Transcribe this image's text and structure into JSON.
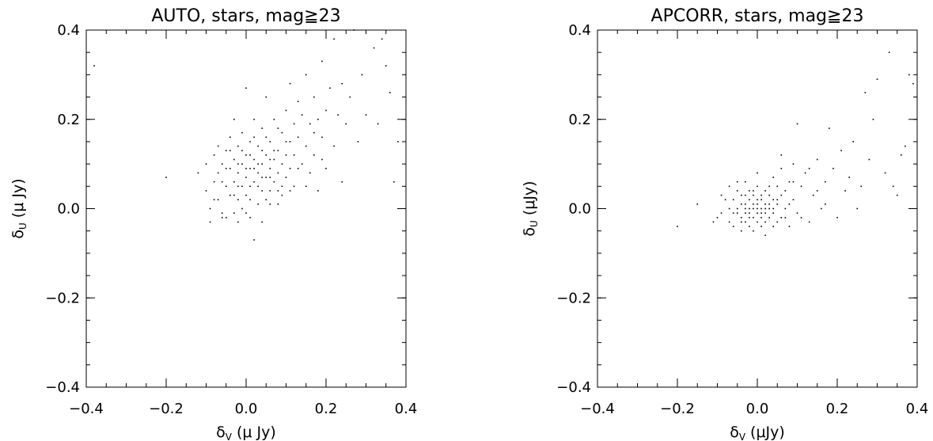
{
  "chart_data": [
    {
      "type": "scatter",
      "title": "AUTO, stars, mag≧23",
      "xlabel_symbol": "δ",
      "xlabel_sub": "V",
      "xlabel_unit": "(μ Jy)",
      "ylabel_symbol": "δ",
      "ylabel_sub": "U",
      "ylabel_unit": "(μ Jy)",
      "xlim": [
        -0.4,
        0.4
      ],
      "ylim": [
        -0.4,
        0.4
      ],
      "xticks": [
        -0.4,
        -0.2,
        0.0,
        0.2,
        0.4
      ],
      "yticks": [
        -0.4,
        -0.2,
        0.0,
        0.2,
        0.4
      ],
      "xtick_labels": [
        "−0.4",
        "−0.2",
        "0.0",
        "0.2",
        "0.4"
      ],
      "ytick_labels": [
        "−0.4",
        "−0.2",
        "0.0",
        "0.2",
        "0.4"
      ],
      "grid": false,
      "marker_color": "#000000",
      "points": [
        [
          -0.38,
          0.32
        ],
        [
          -0.2,
          0.07
        ],
        [
          -0.12,
          0.08
        ],
        [
          -0.1,
          0.1
        ],
        [
          -0.1,
          0.04
        ],
        [
          -0.09,
          0.0
        ],
        [
          -0.09,
          -0.03
        ],
        [
          -0.08,
          0.06
        ],
        [
          -0.08,
          0.12
        ],
        [
          -0.07,
          0.08
        ],
        [
          -0.07,
          0.02
        ],
        [
          -0.06,
          0.1
        ],
        [
          -0.06,
          -0.01
        ],
        [
          -0.05,
          0.05
        ],
        [
          -0.05,
          0.13
        ],
        [
          -0.05,
          -0.02
        ],
        [
          -0.04,
          0.09
        ],
        [
          -0.04,
          0.03
        ],
        [
          -0.04,
          0.16
        ],
        [
          -0.03,
          0.06
        ],
        [
          -0.03,
          0.11
        ],
        [
          -0.03,
          -0.01
        ],
        [
          -0.03,
          0.2
        ],
        [
          -0.02,
          0.08
        ],
        [
          -0.02,
          0.02
        ],
        [
          -0.02,
          0.14
        ],
        [
          -0.02,
          -0.03
        ],
        [
          -0.01,
          0.1
        ],
        [
          -0.01,
          0.05
        ],
        [
          -0.01,
          0.17
        ],
        [
          -0.01,
          0.0
        ],
        [
          0.0,
          0.07
        ],
        [
          0.0,
          0.12
        ],
        [
          0.0,
          0.03
        ],
        [
          0.0,
          0.27
        ],
        [
          0.01,
          0.09
        ],
        [
          0.01,
          -0.02
        ],
        [
          0.01,
          0.15
        ],
        [
          0.01,
          0.05
        ],
        [
          0.02,
          0.11
        ],
        [
          0.02,
          -0.07
        ],
        [
          0.02,
          0.06
        ],
        [
          0.02,
          0.2
        ],
        [
          0.03,
          0.08
        ],
        [
          0.03,
          0.01
        ],
        [
          0.03,
          0.14
        ],
        [
          0.04,
          0.1
        ],
        [
          0.04,
          0.04
        ],
        [
          0.04,
          0.18
        ],
        [
          0.04,
          -0.03
        ],
        [
          0.05,
          0.07
        ],
        [
          0.05,
          0.12
        ],
        [
          0.05,
          0.02
        ],
        [
          0.05,
          0.25
        ],
        [
          0.06,
          0.09
        ],
        [
          0.06,
          0.15
        ],
        [
          0.06,
          0.04
        ],
        [
          0.07,
          0.11
        ],
        [
          0.07,
          0.06
        ],
        [
          0.07,
          0.2
        ],
        [
          0.08,
          0.08
        ],
        [
          0.08,
          0.13
        ],
        [
          0.08,
          0.01
        ],
        [
          0.09,
          0.1
        ],
        [
          0.09,
          0.17
        ],
        [
          0.09,
          0.05
        ],
        [
          0.1,
          0.12
        ],
        [
          0.1,
          0.22
        ],
        [
          0.1,
          0.07
        ],
        [
          0.11,
          0.15
        ],
        [
          0.11,
          0.28
        ],
        [
          0.11,
          0.09
        ],
        [
          0.12,
          0.19
        ],
        [
          0.12,
          0.12
        ],
        [
          0.12,
          0.05
        ],
        [
          0.13,
          0.24
        ],
        [
          0.13,
          0.16
        ],
        [
          0.14,
          0.1
        ],
        [
          0.14,
          0.21
        ],
        [
          0.15,
          0.3
        ],
        [
          0.15,
          0.14
        ],
        [
          0.16,
          0.19
        ],
        [
          0.16,
          0.08
        ],
        [
          0.17,
          0.25
        ],
        [
          0.17,
          0.12
        ],
        [
          0.18,
          0.2
        ],
        [
          0.18,
          0.04
        ],
        [
          0.19,
          0.16
        ],
        [
          0.19,
          0.33
        ],
        [
          0.2,
          0.22
        ],
        [
          0.2,
          0.09
        ],
        [
          0.21,
          0.27
        ],
        [
          0.22,
          0.14
        ],
        [
          0.22,
          0.38
        ],
        [
          0.23,
          0.21
        ],
        [
          0.24,
          0.28
        ],
        [
          0.24,
          0.06
        ],
        [
          0.25,
          0.19
        ],
        [
          0.26,
          0.25
        ],
        [
          0.27,
          0.4
        ],
        [
          0.28,
          0.15
        ],
        [
          0.29,
          0.3
        ],
        [
          0.3,
          0.21
        ],
        [
          0.32,
          0.36
        ],
        [
          0.33,
          0.19
        ],
        [
          0.34,
          0.38
        ],
        [
          0.35,
          0.32
        ],
        [
          0.36,
          0.26
        ],
        [
          0.37,
          0.06
        ],
        [
          0.38,
          0.15
        ],
        [
          -0.06,
          0.06
        ],
        [
          -0.05,
          0.09
        ],
        [
          -0.04,
          0.13
        ],
        [
          -0.02,
          0.05
        ],
        [
          -0.01,
          0.13
        ],
        [
          0.0,
          0.09
        ],
        [
          0.01,
          0.02
        ],
        [
          0.02,
          0.16
        ],
        [
          0.03,
          0.1
        ],
        [
          0.03,
          0.05
        ],
        [
          0.05,
          0.16
        ],
        [
          0.06,
          0.01
        ],
        [
          0.07,
          0.13
        ],
        [
          0.08,
          0.18
        ],
        [
          0.09,
          0.03
        ],
        [
          0.1,
          0.15
        ],
        [
          -0.08,
          0.02
        ],
        [
          -0.07,
          0.14
        ],
        [
          -0.06,
          -0.02
        ],
        [
          0.04,
          0.13
        ],
        [
          0.06,
          0.11
        ],
        [
          0.11,
          0.04
        ],
        [
          0.13,
          0.09
        ],
        [
          0.15,
          0.05
        ],
        [
          0.17,
          0.17
        ],
        [
          0.19,
          0.11
        ],
        [
          -0.03,
          0.03
        ],
        [
          0.0,
          -0.01
        ],
        [
          0.02,
          0.09
        ],
        [
          0.04,
          0.07
        ],
        [
          0.01,
          0.12
        ],
        [
          -0.02,
          0.1
        ],
        [
          0.06,
          0.07
        ],
        [
          0.08,
          0.04
        ]
      ]
    },
    {
      "type": "scatter",
      "title": "APCORR, stars, mag≧23",
      "xlabel_symbol": "δ",
      "xlabel_sub": "V",
      "xlabel_unit": "(μJy)",
      "ylabel_symbol": "δ",
      "ylabel_sub": "U",
      "ylabel_unit": "(μJy)",
      "xlim": [
        -0.4,
        0.4
      ],
      "ylim": [
        -0.4,
        0.4
      ],
      "xticks": [
        -0.4,
        -0.2,
        0.0,
        0.2,
        0.4
      ],
      "yticks": [
        -0.4,
        -0.2,
        0.0,
        0.2,
        0.4
      ],
      "xtick_labels": [
        "−0.4",
        "−0.2",
        "0.0",
        "0.2",
        "0.4"
      ],
      "ytick_labels": [
        "−0.4",
        "−0.2",
        "0.0",
        "0.2",
        "0.4"
      ],
      "grid": false,
      "marker_color": "#000000",
      "points": [
        [
          -0.2,
          -0.04
        ],
        [
          -0.15,
          0.01
        ],
        [
          -0.11,
          -0.03
        ],
        [
          -0.09,
          -0.01
        ],
        [
          -0.07,
          0.0
        ],
        [
          -0.06,
          -0.04
        ],
        [
          -0.06,
          0.02
        ],
        [
          -0.05,
          -0.01
        ],
        [
          -0.05,
          0.04
        ],
        [
          -0.04,
          -0.02
        ],
        [
          -0.04,
          0.01
        ],
        [
          -0.04,
          -0.05
        ],
        [
          -0.03,
          0.0
        ],
        [
          -0.03,
          0.03
        ],
        [
          -0.03,
          -0.03
        ],
        [
          -0.03,
          0.06
        ],
        [
          -0.02,
          -0.01
        ],
        [
          -0.02,
          0.02
        ],
        [
          -0.02,
          -0.04
        ],
        [
          -0.02,
          0.04
        ],
        [
          -0.01,
          0.0
        ],
        [
          -0.01,
          -0.02
        ],
        [
          -0.01,
          0.03
        ],
        [
          -0.01,
          -0.05
        ],
        [
          0.0,
          -0.01
        ],
        [
          0.0,
          0.01
        ],
        [
          0.0,
          -0.03
        ],
        [
          0.0,
          0.05
        ],
        [
          0.0,
          0.08
        ],
        [
          0.01,
          0.0
        ],
        [
          0.01,
          -0.02
        ],
        [
          0.01,
          0.02
        ],
        [
          0.01,
          -0.04
        ],
        [
          0.02,
          -0.01
        ],
        [
          0.02,
          0.01
        ],
        [
          0.02,
          0.04
        ],
        [
          0.02,
          -0.06
        ],
        [
          0.03,
          0.0
        ],
        [
          0.03,
          -0.02
        ],
        [
          0.03,
          0.03
        ],
        [
          0.04,
          -0.01
        ],
        [
          0.04,
          0.02
        ],
        [
          0.04,
          0.07
        ],
        [
          0.05,
          -0.03
        ],
        [
          0.05,
          0.01
        ],
        [
          0.05,
          0.05
        ],
        [
          0.06,
          -0.02
        ],
        [
          0.06,
          0.09
        ],
        [
          0.07,
          0.0
        ],
        [
          0.07,
          0.04
        ],
        [
          0.08,
          -0.04
        ],
        [
          0.08,
          0.06
        ],
        [
          0.09,
          0.02
        ],
        [
          0.09,
          0.1
        ],
        [
          0.1,
          -0.01
        ],
        [
          0.1,
          0.19
        ],
        [
          0.11,
          0.05
        ],
        [
          0.12,
          0.08
        ],
        [
          0.13,
          -0.03
        ],
        [
          0.14,
          0.03
        ],
        [
          0.15,
          0.11
        ],
        [
          0.16,
          0.0
        ],
        [
          0.17,
          0.06
        ],
        [
          0.18,
          0.18
        ],
        [
          0.19,
          0.09
        ],
        [
          0.2,
          -0.02
        ],
        [
          0.21,
          0.13
        ],
        [
          0.22,
          0.04
        ],
        [
          0.23,
          0.07
        ],
        [
          0.24,
          0.15
        ],
        [
          0.25,
          0.0
        ],
        [
          0.26,
          0.05
        ],
        [
          0.27,
          0.26
        ],
        [
          0.28,
          0.11
        ],
        [
          0.29,
          0.2
        ],
        [
          0.3,
          0.29
        ],
        [
          0.32,
          0.08
        ],
        [
          0.33,
          0.35
        ],
        [
          0.34,
          0.05
        ],
        [
          0.35,
          0.03
        ],
        [
          0.36,
          0.12
        ],
        [
          0.37,
          0.14
        ],
        [
          0.38,
          0.3
        ],
        [
          0.39,
          0.28
        ],
        [
          -0.08,
          0.02
        ],
        [
          -0.07,
          -0.03
        ],
        [
          -0.05,
          0.06
        ],
        [
          -0.04,
          0.03
        ],
        [
          -0.03,
          -0.01
        ],
        [
          -0.02,
          0.0
        ],
        [
          -0.01,
          0.01
        ],
        [
          0.0,
          0.02
        ],
        [
          0.01,
          -0.01
        ],
        [
          0.02,
          0.0
        ],
        [
          0.03,
          0.01
        ],
        [
          0.04,
          0.0
        ],
        [
          -0.06,
          -0.01
        ],
        [
          -0.05,
          0.0
        ],
        [
          -0.04,
          -0.03
        ],
        [
          -0.03,
          0.01
        ],
        [
          -0.02,
          -0.02
        ],
        [
          -0.01,
          0.04
        ],
        [
          0.0,
          0.0
        ],
        [
          0.01,
          0.03
        ],
        [
          0.02,
          -0.03
        ],
        [
          0.03,
          0.05
        ],
        [
          0.04,
          -0.04
        ],
        [
          0.05,
          0.02
        ],
        [
          0.06,
          0.03
        ],
        [
          0.07,
          -0.02
        ],
        [
          0.08,
          0.01
        ],
        [
          -0.07,
          0.05
        ],
        [
          -0.09,
          0.03
        ],
        [
          -0.1,
          -0.02
        ],
        [
          0.06,
          0.12
        ],
        [
          0.09,
          0.06
        ],
        [
          0.11,
          -0.02
        ],
        [
          0.13,
          0.09
        ],
        [
          0.15,
          0.04
        ],
        [
          0.17,
          0.01
        ]
      ]
    }
  ]
}
